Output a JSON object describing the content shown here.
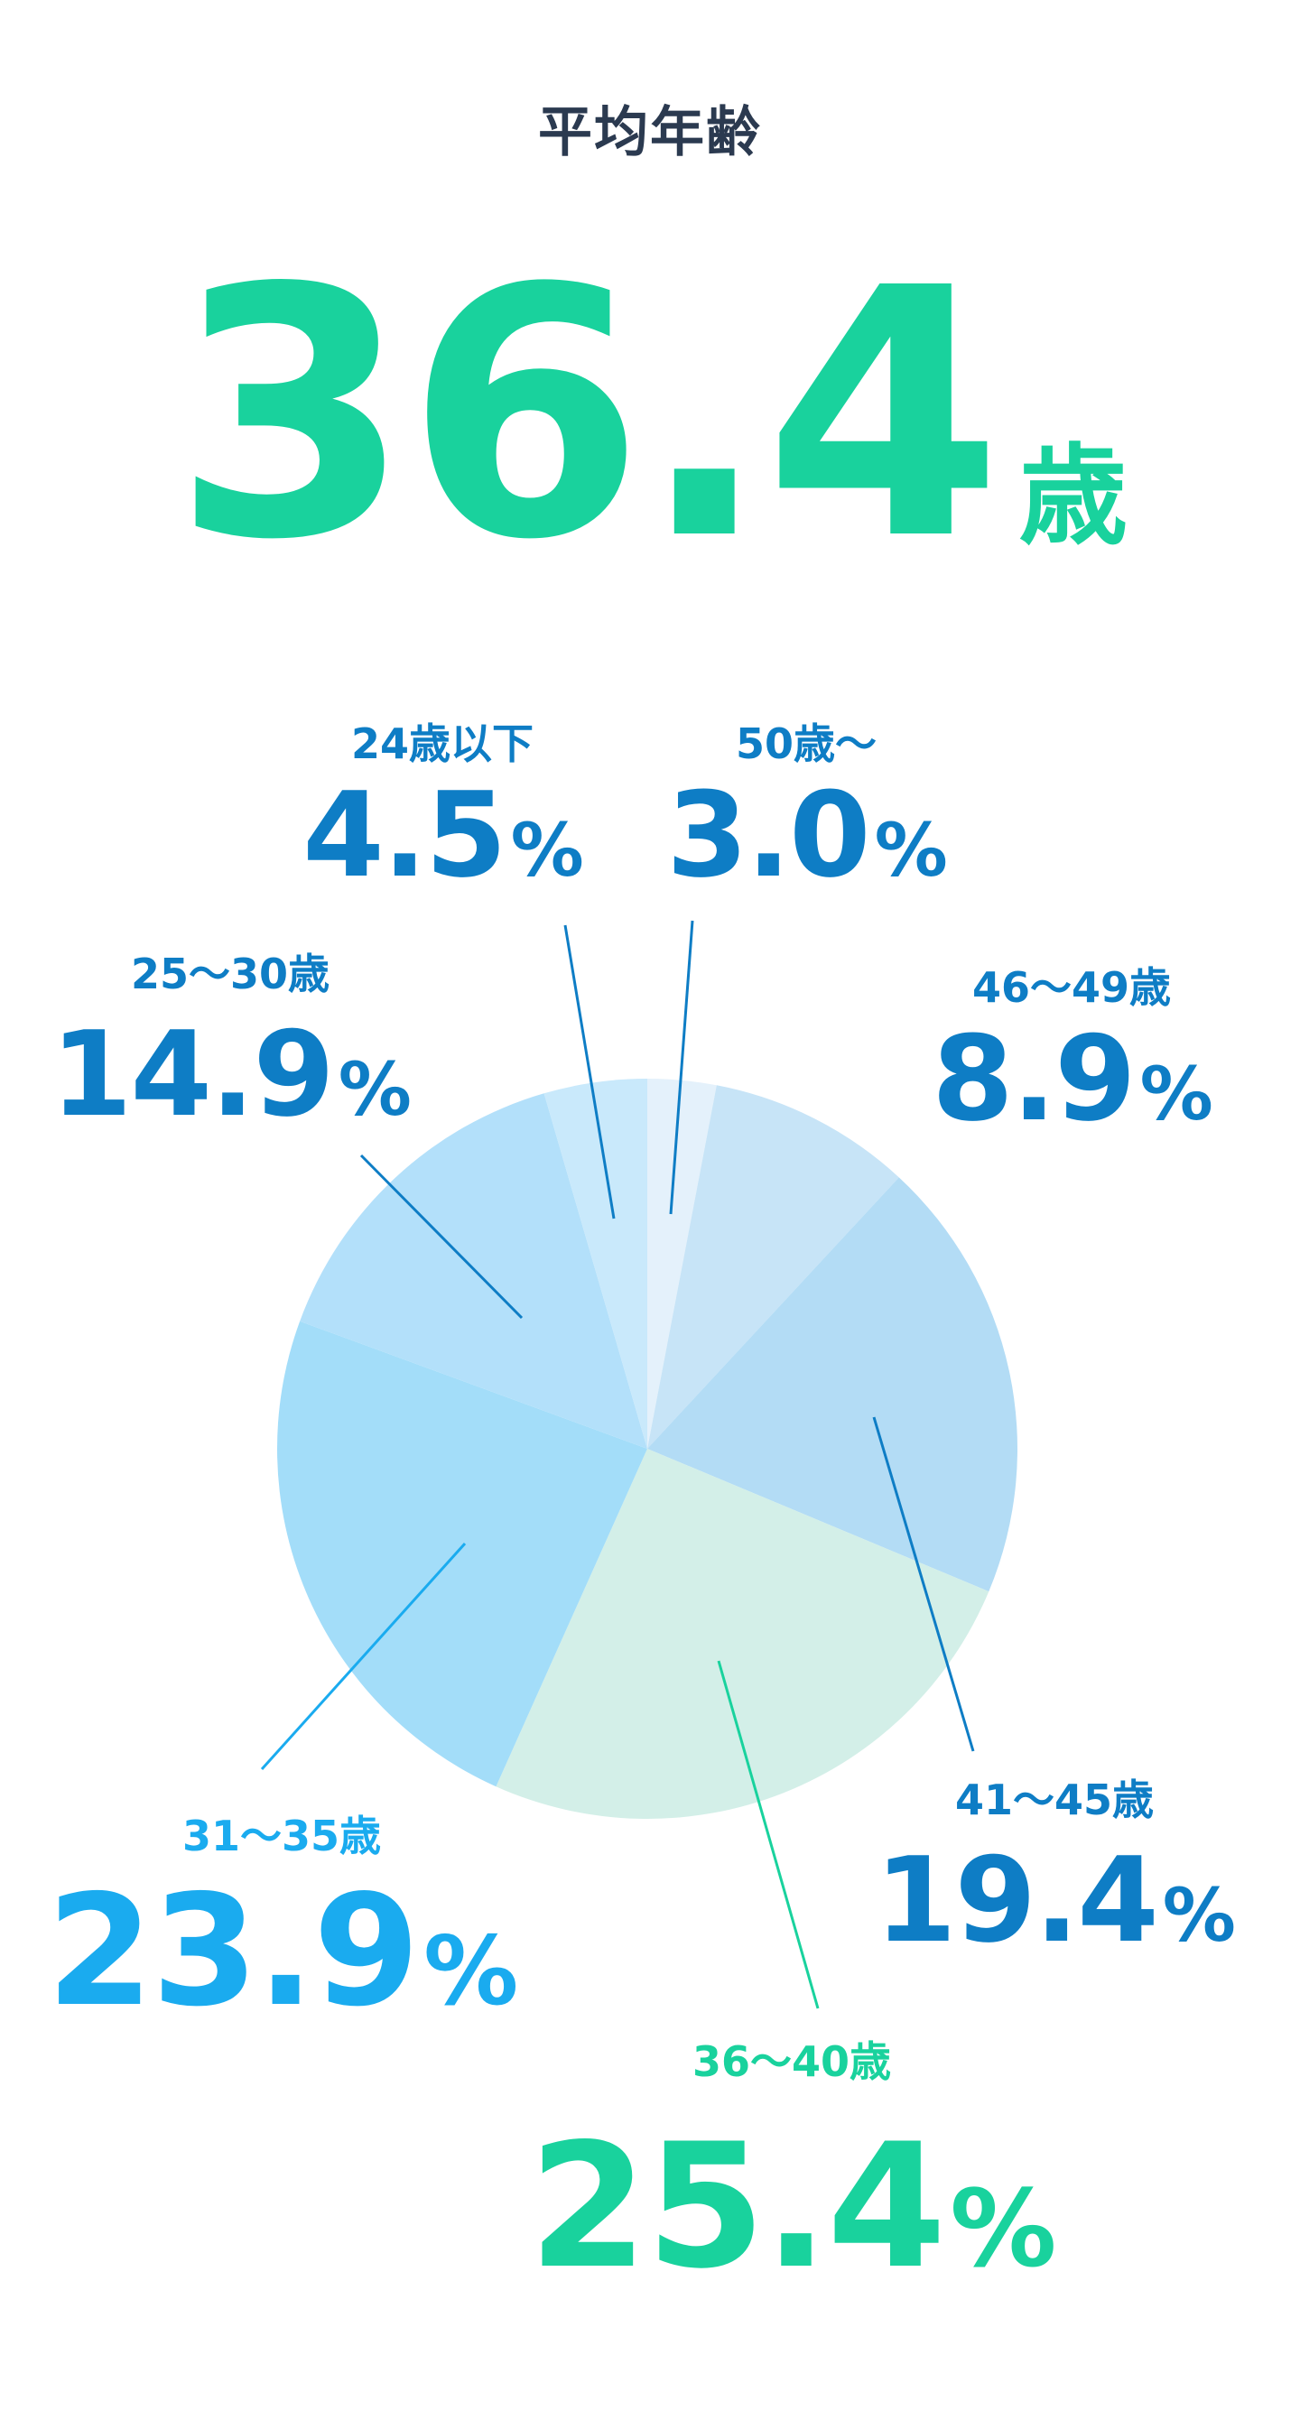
{
  "title": "平均年齢",
  "average": {
    "value": "36.4",
    "unit": "歳"
  },
  "chart_data": {
    "type": "pie",
    "unit": "%",
    "slices": [
      {
        "label": "50歳～",
        "value": 3.0,
        "display": "3.0",
        "fill": "#e4f1fb",
        "text_color": "#0e7dc5"
      },
      {
        "label": "46～49歳",
        "value": 8.9,
        "display": "8.9",
        "fill": "#c7e4f7",
        "text_color": "#0e7dc5"
      },
      {
        "label": "41～45歳",
        "value": 19.4,
        "display": "19.4",
        "fill": "#b3dcf5",
        "text_color": "#0e7dc5"
      },
      {
        "label": "36～40歳",
        "value": 25.4,
        "display": "25.4",
        "fill": "#d3efe8",
        "text_color": "#19d29d"
      },
      {
        "label": "31～35歳",
        "value": 23.9,
        "display": "23.9",
        "fill": "#a3ddf9",
        "text_color": "#1aabef"
      },
      {
        "label": "25～30歳",
        "value": 14.9,
        "display": "14.9",
        "fill": "#b3e0fa",
        "text_color": "#0e7dc5"
      },
      {
        "label": "24歳以下",
        "value": 4.5,
        "display": "4.5",
        "fill": "#c9e9fb",
        "text_color": "#0e7dc5"
      }
    ]
  }
}
